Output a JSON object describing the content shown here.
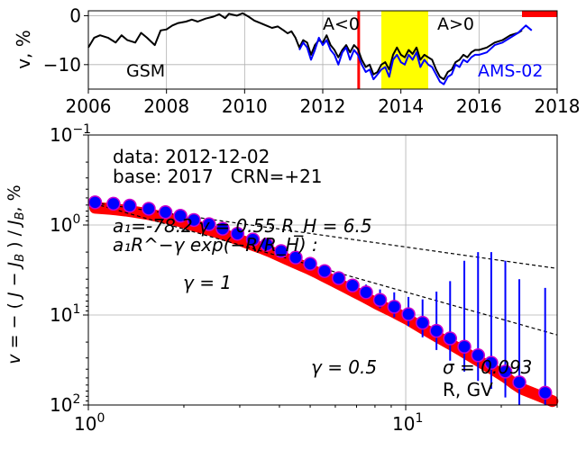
{
  "chart_data": [
    {
      "type": "line",
      "ylabel": "v, %",
      "xlim": [
        2006,
        2018
      ],
      "ylim": [
        -15,
        1
      ],
      "x_ticks": [
        "2006",
        "2008",
        "2010",
        "2012",
        "2014",
        "2016",
        "2018"
      ],
      "y_ticks": [
        "0",
        "−10"
      ],
      "grid": true,
      "annotations": {
        "gsm": "GSM",
        "ams": "AMS-02",
        "a_neg": "A<0",
        "a_pos": "A>0"
      },
      "marker_year": 2012.92,
      "shaded_span": [
        2013.5,
        2014.7
      ],
      "shaded_color": "#ffff00",
      "marker_color": "#ff0000",
      "corner_bar": [
        2017.1,
        2018
      ],
      "series": [
        {
          "name": "GSM",
          "color": "#000000",
          "x": [
            2006.0,
            2006.15,
            2006.3,
            2006.5,
            2006.7,
            2006.85,
            2007.0,
            2007.2,
            2007.35,
            2007.5,
            2007.7,
            2007.85,
            2008.0,
            2008.15,
            2008.3,
            2008.5,
            2008.65,
            2008.8,
            2009.0,
            2009.2,
            2009.35,
            2009.5,
            2009.6,
            2009.7,
            2009.8,
            2009.95,
            2010.1,
            2010.25,
            2010.4,
            2010.55,
            2010.7,
            2010.85,
            2011.0,
            2011.1,
            2011.2,
            2011.3,
            2011.4,
            2011.5,
            2011.6,
            2011.7,
            2011.8,
            2011.9,
            2012.0,
            2012.1,
            2012.2,
            2012.3,
            2012.4,
            2012.5,
            2012.6,
            2012.7,
            2012.8,
            2012.9,
            2013.0,
            2013.1,
            2013.2,
            2013.3,
            2013.4,
            2013.5,
            2013.6,
            2013.7,
            2013.8,
            2013.9,
            2014.0,
            2014.1,
            2014.2,
            2014.3,
            2014.4,
            2014.5,
            2014.6,
            2014.7,
            2014.8,
            2014.9,
            2015.0,
            2015.1,
            2015.2,
            2015.3,
            2015.4,
            2015.5,
            2015.6,
            2015.7,
            2015.8,
            2015.9,
            2016.0,
            2016.2,
            2016.4,
            2016.6,
            2016.8,
            2017.0,
            2017.1
          ],
          "y": [
            -6.5,
            -4.5,
            -4.0,
            -4.5,
            -5.5,
            -4.0,
            -5.0,
            -5.5,
            -3.5,
            -4.5,
            -6.0,
            -3.0,
            -2.8,
            -2.0,
            -1.5,
            -1.2,
            -0.8,
            -1.2,
            -0.6,
            -0.2,
            0.3,
            -0.5,
            0.4,
            0.2,
            0.0,
            0.5,
            -0.2,
            -1.0,
            -1.5,
            -2.0,
            -2.5,
            -2.2,
            -3.0,
            -3.6,
            -3.2,
            -4.5,
            -6.5,
            -5.0,
            -5.5,
            -8.0,
            -6.0,
            -5.0,
            -5.5,
            -4.0,
            -6.0,
            -7.0,
            -8.5,
            -7.0,
            -6.0,
            -7.5,
            -6.0,
            -6.8,
            -9.0,
            -10.5,
            -10.0,
            -12.0,
            -11.5,
            -10.0,
            -9.5,
            -11.0,
            -8.0,
            -6.5,
            -8.0,
            -8.5,
            -7.0,
            -7.8,
            -6.5,
            -9.0,
            -8.0,
            -8.5,
            -9.0,
            -11.0,
            -12.5,
            -13.0,
            -11.5,
            -11.0,
            -9.5,
            -9.0,
            -8.0,
            -8.5,
            -7.5,
            -7.0,
            -7.0,
            -6.5,
            -5.5,
            -5.0,
            -4.0,
            -3.5,
            -3.0
          ]
        },
        {
          "name": "AMS-02",
          "color": "#0000ff",
          "x": [
            2011.4,
            2011.5,
            2011.6,
            2011.7,
            2011.8,
            2011.9,
            2012.0,
            2012.1,
            2012.2,
            2012.3,
            2012.4,
            2012.5,
            2012.6,
            2012.7,
            2012.8,
            2012.9,
            2013.0,
            2013.1,
            2013.2,
            2013.3,
            2013.4,
            2013.5,
            2013.6,
            2013.7,
            2013.8,
            2013.9,
            2014.0,
            2014.1,
            2014.2,
            2014.3,
            2014.4,
            2014.5,
            2014.6,
            2014.7,
            2014.8,
            2014.9,
            2015.0,
            2015.1,
            2015.2,
            2015.3,
            2015.4,
            2015.5,
            2015.6,
            2015.7,
            2015.8,
            2015.9,
            2016.0,
            2016.2,
            2016.4,
            2016.6,
            2016.8,
            2017.0,
            2017.2,
            2017.35
          ],
          "y": [
            -7.0,
            -5.5,
            -6.5,
            -9.0,
            -7.0,
            -4.5,
            -6.0,
            -5.0,
            -7.0,
            -8.0,
            -10.0,
            -7.5,
            -6.5,
            -9.0,
            -7.0,
            -8.0,
            -10.0,
            -11.5,
            -11.0,
            -13.0,
            -12.0,
            -11.0,
            -10.5,
            -12.5,
            -9.0,
            -8.0,
            -9.5,
            -10.0,
            -8.0,
            -9.0,
            -7.5,
            -10.5,
            -9.0,
            -10.0,
            -10.5,
            -12.0,
            -13.5,
            -14.0,
            -12.5,
            -12.0,
            -10.0,
            -10.5,
            -9.0,
            -9.5,
            -8.5,
            -8.0,
            -8.0,
            -7.5,
            -6.0,
            -5.5,
            -4.5,
            -3.5,
            -2.0,
            -3.0
          ]
        }
      ]
    },
    {
      "type": "scatter",
      "xlabel": "R, GV",
      "ylabel": "v = − ( J − J_B ) / J_B, %",
      "xscale": "log",
      "yscale": "log",
      "y_inverted": true,
      "xlim": [
        1,
        30
      ],
      "ylim": [
        0.1,
        100
      ],
      "x_tick_labels": {
        "one": "10",
        "one_exp": "0",
        "ten": "10",
        "ten_exp": "1"
      },
      "y_tick_labels": {
        "base": "10",
        "exps": [
          "−1",
          "0",
          "1",
          "2"
        ]
      },
      "grid": true,
      "annotations": {
        "data_date": "data: 2012-12-02",
        "base_line": "base: 2017   CRN=+21",
        "fit_params": "a₁=-78.2  γ = 0.55  R_H =  6.5",
        "fit_formula": "a₁R^−γ exp(−R/R_H) :",
        "gamma1": "γ = 1",
        "gamma05": "γ = 0.5",
        "sigma": "σ = 0.093"
      },
      "fit": {
        "a1": -78.2,
        "gamma": 0.55,
        "R_H": 6.5,
        "color": "#ff0000"
      },
      "reference_lines": [
        {
          "label": "γ = 1",
          "gamma": 1.0,
          "anchor": [
            1.0,
            0.555
          ]
        },
        {
          "label": "γ = 0.5",
          "gamma": 0.5,
          "anchor": [
            1.0,
            0.555
          ]
        }
      ],
      "points": {
        "color": "#0000ff",
        "edge_color": "#cc00cc",
        "errorbar_color": "#0000ff",
        "x": [
          1.05,
          1.2,
          1.35,
          1.55,
          1.75,
          1.95,
          2.15,
          2.4,
          2.65,
          2.95,
          3.3,
          3.65,
          4.05,
          4.5,
          5.0,
          5.55,
          6.15,
          6.8,
          7.5,
          8.3,
          9.2,
          10.2,
          11.3,
          12.5,
          13.8,
          15.3,
          16.9,
          18.6,
          20.6,
          22.8,
          27.5
        ],
        "v": [
          0.56,
          0.58,
          0.61,
          0.66,
          0.72,
          0.79,
          0.88,
          0.98,
          1.1,
          1.25,
          1.45,
          1.65,
          1.95,
          2.3,
          2.7,
          3.25,
          3.9,
          4.7,
          5.6,
          6.8,
          8.1,
          9.8,
          12.2,
          15.0,
          18.2,
          22.5,
          28.0,
          34.0,
          42.5,
          56.0,
          73.0
        ],
        "err": [
          0.01,
          0.01,
          0.01,
          0.01,
          0.01,
          0.01,
          0.02,
          0.02,
          0.02,
          0.03,
          0.04,
          0.05,
          0.07,
          0.1,
          0.15,
          0.25,
          0.4,
          0.65,
          1.0,
          1.6,
          2.5,
          3.5,
          5.5,
          9.5,
          14,
          20,
          26,
          32,
          40,
          52,
          68
        ]
      }
    }
  ]
}
